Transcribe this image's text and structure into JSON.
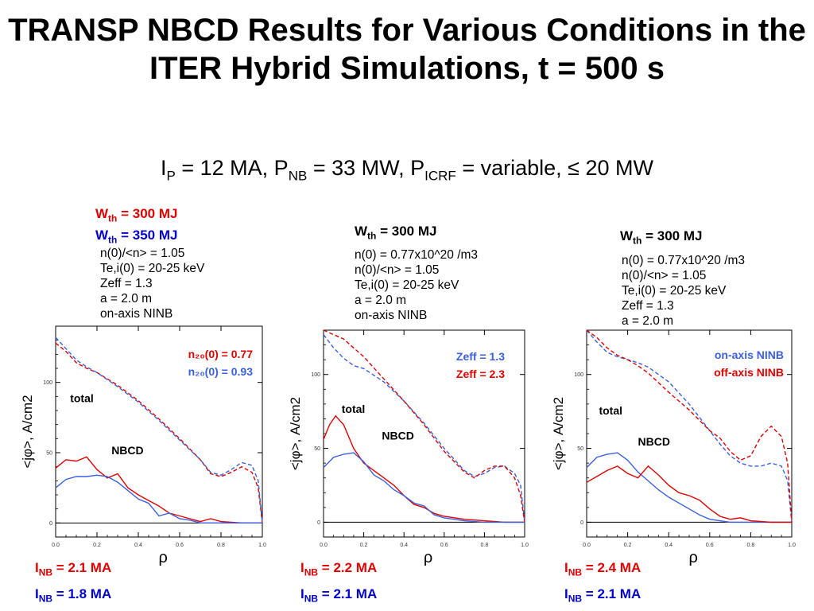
{
  "header": {
    "title": "TRANSP NBCD Results for Various Conditions in the ITER Hybrid Simulations, t = 500 s",
    "subtitle": {
      "ip_main": "I",
      "ip_sub": "P",
      "ip_text": " = 12 MA, P",
      "pnb_sub": "NB",
      "pnb_text": " = 33 MW, P",
      "picrf_sub": "ICRF",
      "picrf_text": " = variable, ≤ 20 MW"
    }
  },
  "colors": {
    "red": "#e00000",
    "blue": "#2a52e0",
    "black": "#000000"
  },
  "panels": [
    {
      "wth": [
        {
          "label": "W",
          "sub": "th",
          "value": " = 300 MJ",
          "color": "red"
        },
        {
          "label": "W",
          "sub": "th",
          "value": " = 350 MJ",
          "color": "blue"
        }
      ],
      "params": [
        "n(0)/<n> = 1.05",
        "Te,i(0) = 20-25 keV",
        "Zeff = 1.3",
        "a = 2.0 m",
        "on-axis NINB"
      ],
      "inb": [
        {
          "label": "I",
          "sub": "NB",
          "value": " = 2.1 MA",
          "color": "red"
        },
        {
          "label": "I",
          "sub": "NB",
          "value": " = 1.8 MA",
          "color": "blue"
        }
      ]
    },
    {
      "wth": [
        {
          "label": "W",
          "sub": "th",
          "value": " = 300 MJ",
          "color": "black"
        }
      ],
      "params": [
        "n(0) = 0.77x10^20 /m3",
        "n(0)/<n> = 1.05",
        "Te,i(0) = 20-25 keV",
        "a = 2.0 m",
        "on-axis NINB"
      ],
      "inb": [
        {
          "label": "I",
          "sub": "NB",
          "value": " = 2.2 MA",
          "color": "red"
        },
        {
          "label": "I",
          "sub": "NB",
          "value": " = 2.1 MA",
          "color": "blue"
        }
      ]
    },
    {
      "wth": [
        {
          "label": "W",
          "sub": "th",
          "value": " = 300 MJ",
          "color": "black"
        }
      ],
      "params": [
        "n(0) = 0.77x10^20 /m3",
        "n(0)/<n> = 1.05",
        "Te,i(0) = 20-25 keV",
        "Zeff = 1.3",
        "a = 2.0 m"
      ],
      "inb": [
        {
          "label": "I",
          "sub": "NB",
          "value": " = 2.4 MA",
          "color": "red"
        },
        {
          "label": "I",
          "sub": "NB",
          "value": " = 2.1 MA",
          "color": "blue"
        }
      ]
    }
  ],
  "chart_data": [
    {
      "type": "line",
      "xlabel": "ρ",
      "ylabel": "<jφ>, A/cm2",
      "xlim": [
        0,
        1.0
      ],
      "ylim": [
        -10,
        140
      ],
      "xticks": [
        "0.0",
        "0.2",
        "0.4",
        "0.6",
        "0.8",
        "1.0"
      ],
      "yticks": [
        0,
        50,
        100
      ],
      "ytick_labels": [
        "0",
        "50",
        "100"
      ],
      "annotations": [
        "total",
        "NBCD"
      ],
      "legend": [
        "n₂₀(0) = 0.77",
        "n₂₀(0) = 0.93"
      ],
      "legend_colors": [
        "red",
        "blue"
      ],
      "legend_position": "top-right",
      "series": [
        {
          "name": "n₂₀(0) = 0.77",
          "kind": "total",
          "color": "red",
          "dashed": true,
          "x": [
            0,
            0.05,
            0.1,
            0.15,
            0.2,
            0.3,
            0.4,
            0.5,
            0.6,
            0.7,
            0.75,
            0.8,
            0.85,
            0.9,
            0.95,
            0.98,
            1.0
          ],
          "y": [
            128,
            122,
            114,
            110,
            107,
            98,
            87,
            74,
            60,
            45,
            35,
            33,
            36,
            40,
            36,
            25,
            0
          ]
        },
        {
          "name": "n₂₀(0) = 0.93",
          "kind": "total",
          "color": "blue",
          "dashed": true,
          "x": [
            0,
            0.05,
            0.1,
            0.15,
            0.2,
            0.3,
            0.4,
            0.5,
            0.6,
            0.7,
            0.75,
            0.8,
            0.85,
            0.9,
            0.95,
            0.98,
            1.0
          ],
          "y": [
            132,
            124,
            116,
            111,
            107,
            97,
            86,
            73,
            59,
            45,
            36,
            34,
            38,
            43,
            41,
            30,
            0
          ]
        },
        {
          "name": "n₂₀(0) = 0.77",
          "kind": "NBCD",
          "color": "red",
          "dashed": false,
          "x": [
            0,
            0.05,
            0.1,
            0.15,
            0.2,
            0.25,
            0.3,
            0.35,
            0.4,
            0.45,
            0.5,
            0.55,
            0.6,
            0.65,
            0.7,
            0.75,
            0.8,
            0.9,
            1.0
          ],
          "y": [
            39,
            45,
            44,
            47,
            38,
            32,
            35,
            25,
            20,
            16,
            12,
            7,
            5,
            3,
            1,
            3,
            1,
            0,
            0
          ]
        },
        {
          "name": "n₂₀(0) = 0.93",
          "kind": "NBCD",
          "color": "blue",
          "dashed": false,
          "x": [
            0,
            0.05,
            0.1,
            0.15,
            0.2,
            0.25,
            0.3,
            0.35,
            0.4,
            0.45,
            0.5,
            0.55,
            0.6,
            0.65,
            0.7,
            0.8,
            0.9,
            1.0
          ],
          "y": [
            25,
            31,
            33,
            33,
            34,
            33,
            29,
            23,
            17,
            14,
            5,
            7,
            3,
            2,
            0,
            0,
            0,
            0
          ]
        }
      ]
    },
    {
      "type": "line",
      "xlabel": "ρ",
      "ylabel": "<jφ>, A/cm2",
      "xlim": [
        0,
        1.0
      ],
      "ylim": [
        -10,
        130
      ],
      "xticks": [
        "0.0",
        "0.2",
        "0.4",
        "0.6",
        "0.8",
        "1.0"
      ],
      "yticks": [
        0,
        50,
        100
      ],
      "ytick_labels": [
        "0",
        "50",
        "100"
      ],
      "annotations": [
        "total",
        "NBCD"
      ],
      "legend": [
        "Zeff = 1.3",
        "Zeff = 2.3"
      ],
      "legend_colors": [
        "blue",
        "red"
      ],
      "legend_position": "top-right",
      "series": [
        {
          "name": "Zeff = 1.3",
          "kind": "total",
          "color": "blue",
          "dashed": true,
          "x": [
            0,
            0.05,
            0.1,
            0.15,
            0.2,
            0.3,
            0.4,
            0.5,
            0.6,
            0.7,
            0.75,
            0.8,
            0.85,
            0.9,
            0.95,
            0.98,
            1.0
          ],
          "y": [
            127,
            118,
            111,
            106,
            104,
            95,
            82,
            67,
            50,
            35,
            31,
            33,
            37,
            38,
            33,
            25,
            0
          ]
        },
        {
          "name": "Zeff = 2.3",
          "kind": "total",
          "color": "red",
          "dashed": true,
          "x": [
            0,
            0.05,
            0.1,
            0.15,
            0.2,
            0.3,
            0.4,
            0.5,
            0.6,
            0.7,
            0.75,
            0.8,
            0.85,
            0.9,
            0.95,
            0.98,
            1.0
          ],
          "y": [
            130,
            127,
            124,
            118,
            112,
            97,
            82,
            66,
            48,
            34,
            30,
            35,
            38,
            38,
            30,
            18,
            0
          ]
        },
        {
          "name": "Zeff = 2.3",
          "kind": "NBCD",
          "color": "red",
          "dashed": false,
          "x": [
            0,
            0.03,
            0.06,
            0.1,
            0.15,
            0.2,
            0.25,
            0.3,
            0.35,
            0.4,
            0.45,
            0.5,
            0.55,
            0.6,
            0.7,
            0.8,
            0.9,
            1.0
          ],
          "y": [
            56,
            66,
            72,
            66,
            50,
            40,
            35,
            30,
            25,
            18,
            12,
            10,
            6,
            4,
            2,
            1,
            0,
            0
          ]
        },
        {
          "name": "Zeff = 1.3",
          "kind": "NBCD",
          "color": "blue",
          "dashed": false,
          "x": [
            0,
            0.05,
            0.1,
            0.15,
            0.2,
            0.25,
            0.3,
            0.35,
            0.4,
            0.45,
            0.5,
            0.55,
            0.6,
            0.7,
            0.8,
            0.9,
            1.0
          ],
          "y": [
            37,
            44,
            46,
            47,
            41,
            32,
            28,
            22,
            18,
            13,
            11,
            5,
            3,
            1,
            0,
            0,
            0
          ]
        }
      ]
    },
    {
      "type": "line",
      "xlabel": "ρ",
      "ylabel": "<jφ>, A/cm2",
      "xlim": [
        0,
        1.0
      ],
      "ylim": [
        -10,
        130
      ],
      "xticks": [
        "0.0",
        "0.2",
        "0.4",
        "0.6",
        "0.8",
        "1.0"
      ],
      "yticks": [
        0,
        50,
        100
      ],
      "ytick_labels": [
        "0",
        "50",
        "100"
      ],
      "annotations": [
        "total",
        "NBCD"
      ],
      "legend": [
        "on-axis NINB",
        "off-axis NINB"
      ],
      "legend_colors": [
        "blue",
        "red"
      ],
      "legend_position": "top-right",
      "series": [
        {
          "name": "on-axis NINB",
          "kind": "total",
          "color": "blue",
          "dashed": true,
          "x": [
            0,
            0.05,
            0.1,
            0.15,
            0.2,
            0.25,
            0.3,
            0.4,
            0.5,
            0.6,
            0.65,
            0.7,
            0.75,
            0.8,
            0.85,
            0.9,
            0.95,
            0.98,
            1.0
          ],
          "y": [
            130,
            122,
            115,
            112,
            110,
            108,
            105,
            95,
            80,
            62,
            53,
            45,
            40,
            38,
            38,
            40,
            38,
            28,
            0
          ]
        },
        {
          "name": "off-axis NINB",
          "kind": "total",
          "color": "red",
          "dashed": true,
          "x": [
            0,
            0.05,
            0.1,
            0.15,
            0.2,
            0.25,
            0.3,
            0.4,
            0.5,
            0.6,
            0.65,
            0.7,
            0.75,
            0.8,
            0.85,
            0.9,
            0.95,
            0.98,
            1.0
          ],
          "y": [
            130,
            125,
            118,
            113,
            110,
            106,
            101,
            88,
            76,
            62,
            57,
            48,
            42,
            45,
            58,
            65,
            58,
            40,
            0
          ]
        },
        {
          "name": "on-axis NINB",
          "kind": "NBCD",
          "color": "blue",
          "dashed": false,
          "x": [
            0,
            0.05,
            0.1,
            0.15,
            0.2,
            0.25,
            0.3,
            0.35,
            0.4,
            0.45,
            0.5,
            0.55,
            0.6,
            0.65,
            0.7,
            0.8,
            0.9,
            1.0
          ],
          "y": [
            37,
            44,
            46,
            47,
            42,
            34,
            28,
            22,
            17,
            13,
            9,
            5,
            2,
            1,
            0,
            0,
            0,
            0
          ]
        },
        {
          "name": "off-axis NINB",
          "kind": "NBCD",
          "color": "red",
          "dashed": false,
          "x": [
            0,
            0.05,
            0.1,
            0.15,
            0.2,
            0.25,
            0.3,
            0.35,
            0.4,
            0.45,
            0.5,
            0.55,
            0.6,
            0.65,
            0.7,
            0.75,
            0.8,
            0.9,
            1.0
          ],
          "y": [
            27,
            31,
            35,
            38,
            33,
            30,
            38,
            32,
            25,
            20,
            18,
            15,
            9,
            4,
            2,
            3,
            1,
            0,
            0
          ]
        }
      ]
    }
  ]
}
